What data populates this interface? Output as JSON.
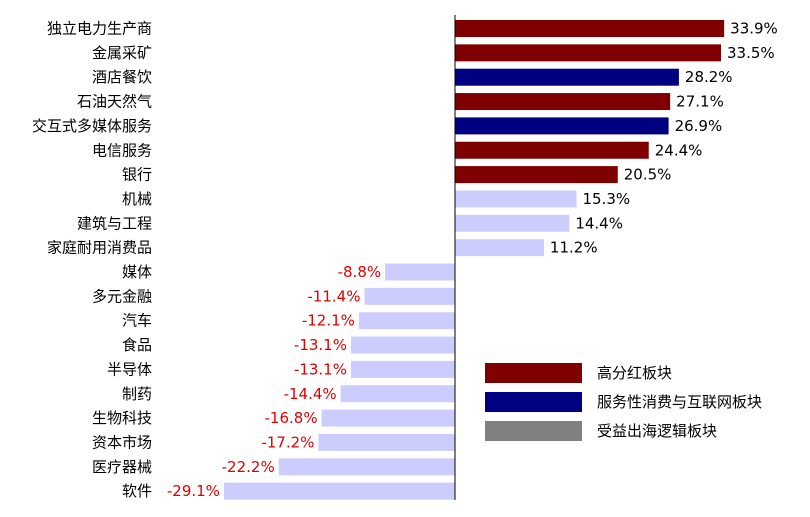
{
  "chart_data": {
    "type": "bar",
    "orientation": "horizontal",
    "categories": [
      "独立电力生产商",
      "金属采矿",
      "酒店餐饮",
      "石油天然气",
      "交互式多媒体服务",
      "电信服务",
      "银行",
      "机械",
      "建筑与工程",
      "家庭耐用消费品",
      "媒体",
      "多元金融",
      "汽车",
      "食品",
      "半导体",
      "制药",
      "生物科技",
      "资本市场",
      "医疗器械",
      "软件"
    ],
    "values": [
      33.9,
      33.5,
      28.2,
      27.1,
      26.9,
      24.4,
      20.5,
      15.3,
      14.4,
      11.2,
      -8.8,
      -11.4,
      -12.1,
      -13.1,
      -13.1,
      -14.4,
      -16.8,
      -17.2,
      -22.2,
      -29.1
    ],
    "value_labels": [
      "33.9%",
      "33.5%",
      "28.2%",
      "27.1%",
      "26.9%",
      "24.4%",
      "20.5%",
      "15.3%",
      "14.4%",
      "11.2%",
      "-8.8%",
      "-11.4%",
      "-12.1%",
      "-13.1%",
      "-13.1%",
      "-14.4%",
      "-16.8%",
      "-17.2%",
      "-22.2%",
      "-29.1%"
    ],
    "groups": [
      "high",
      "high",
      "internet",
      "high",
      "internet",
      "high",
      "high",
      "other",
      "other",
      "other",
      "other",
      "other",
      "other",
      "other",
      "other",
      "other",
      "other",
      "other",
      "other",
      "other"
    ],
    "bar_colors": {
      "high": "#7f0000",
      "internet": "#000080",
      "other": "#ccccff"
    },
    "label_colors": {
      "positive": "#000000",
      "negative": "#e00000"
    },
    "legend": [
      {
        "key": "high",
        "label": "高分红板块",
        "color": "#7f0000"
      },
      {
        "key": "internet",
        "label": "服务性消费与互联网板块",
        "color": "#000080"
      },
      {
        "key": "export",
        "label": "受益出海逻辑板块",
        "color": "#808080"
      }
    ],
    "legend_position": "bottom-right",
    "xlim": [
      -35,
      40
    ],
    "grid": false
  }
}
